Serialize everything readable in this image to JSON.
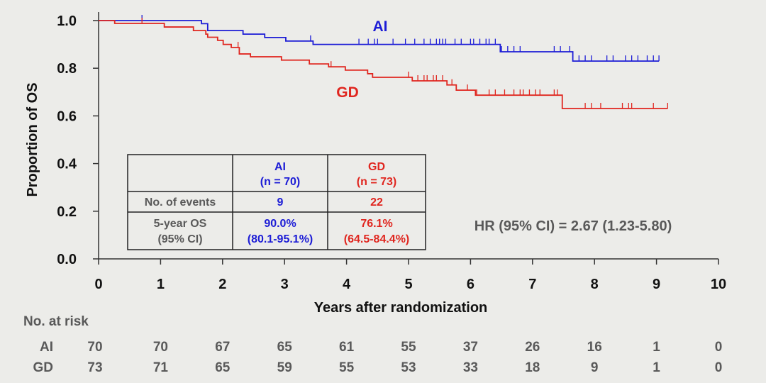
{
  "chart_data": {
    "type": "line",
    "subtype": "kaplan-meier",
    "xlabel": "Years after randomization",
    "ylabel": "Proportion of OS",
    "xlim": [
      0,
      10
    ],
    "ylim": [
      0,
      1
    ],
    "xticks": [
      "0",
      "1",
      "2",
      "3",
      "4",
      "5",
      "6",
      "7",
      "8",
      "9",
      "10"
    ],
    "yticks": [
      "0.0",
      "0.2",
      "0.4",
      "0.6",
      "0.8",
      "1.0"
    ],
    "colors": {
      "AI": "#1c1cd6",
      "GD": "#e0261f"
    },
    "series": [
      {
        "name": "AI",
        "steps": [
          [
            0,
            1.0
          ],
          [
            1.66,
            0.987
          ],
          [
            1.76,
            0.958
          ],
          [
            2.33,
            0.943
          ],
          [
            2.68,
            0.929
          ],
          [
            3.02,
            0.914
          ],
          [
            3.46,
            0.9
          ],
          [
            6.48,
            0.869
          ],
          [
            7.65,
            0.83
          ]
        ],
        "end": 9.04,
        "censored": [
          0.7,
          3.42,
          4.2,
          4.35,
          4.45,
          4.5,
          4.75,
          4.95,
          5.1,
          5.25,
          5.35,
          5.45,
          5.5,
          5.55,
          5.6,
          5.75,
          5.85,
          6.0,
          6.05,
          6.15,
          6.25,
          6.3,
          6.4,
          6.5,
          6.6,
          6.7,
          6.8,
          7.35,
          7.45,
          7.6,
          7.75,
          7.85,
          7.95,
          8.2,
          8.3,
          8.5,
          8.6,
          8.7,
          8.85,
          8.95,
          9.04
        ]
      },
      {
        "name": "GD",
        "steps": [
          [
            0,
            1.0
          ],
          [
            0.26,
            0.988
          ],
          [
            1.06,
            0.973
          ],
          [
            1.53,
            0.958
          ],
          [
            1.73,
            0.943
          ],
          [
            1.76,
            0.93
          ],
          [
            1.92,
            0.917
          ],
          [
            2.01,
            0.9
          ],
          [
            2.14,
            0.887
          ],
          [
            2.27,
            0.86
          ],
          [
            2.45,
            0.848
          ],
          [
            2.95,
            0.834
          ],
          [
            3.4,
            0.818
          ],
          [
            3.71,
            0.806
          ],
          [
            3.98,
            0.792
          ],
          [
            4.34,
            0.777
          ],
          [
            4.42,
            0.762
          ],
          [
            5.06,
            0.747
          ],
          [
            5.62,
            0.73
          ],
          [
            5.77,
            0.708
          ],
          [
            6.08,
            0.687
          ],
          [
            7.48,
            0.631
          ]
        ],
        "end": 9.18,
        "censored": [
          0.7,
          2.25,
          3.75,
          5.0,
          5.15,
          5.25,
          5.3,
          5.4,
          5.45,
          5.55,
          5.7,
          5.95,
          6.1,
          6.3,
          6.4,
          6.55,
          6.7,
          6.8,
          6.85,
          6.95,
          7.05,
          7.12,
          7.35,
          7.4,
          7.85,
          7.95,
          8.1,
          8.45,
          8.55,
          8.6,
          8.95,
          9.18
        ]
      }
    ],
    "annotations": {
      "ai_label": "AI",
      "gd_label": "GD",
      "hr": "HR (95% CI) = 2.67 (1.23-5.80)"
    },
    "table": {
      "header": [
        "",
        "AI",
        "(n = 70)",
        "GD",
        "(n = 73)"
      ],
      "rows": [
        {
          "label": "No. of events",
          "ai": "9",
          "gd": "22"
        },
        {
          "label": "5-year OS",
          "label2": "(95% CI)",
          "ai": "90.0%",
          "ai2": "(80.1-95.1%)",
          "gd": "76.1%",
          "gd2": "(64.5-84.4%)"
        }
      ]
    },
    "at_risk": {
      "title": "No. at risk",
      "rows": [
        {
          "name": "AI",
          "values": [
            "70",
            "70",
            "67",
            "65",
            "61",
            "55",
            "37",
            "26",
            "16",
            "1",
            "0"
          ]
        },
        {
          "name": "GD",
          "values": [
            "73",
            "71",
            "65",
            "59",
            "55",
            "53",
            "33",
            "18",
            "9",
            "1",
            "0"
          ]
        }
      ]
    }
  }
}
